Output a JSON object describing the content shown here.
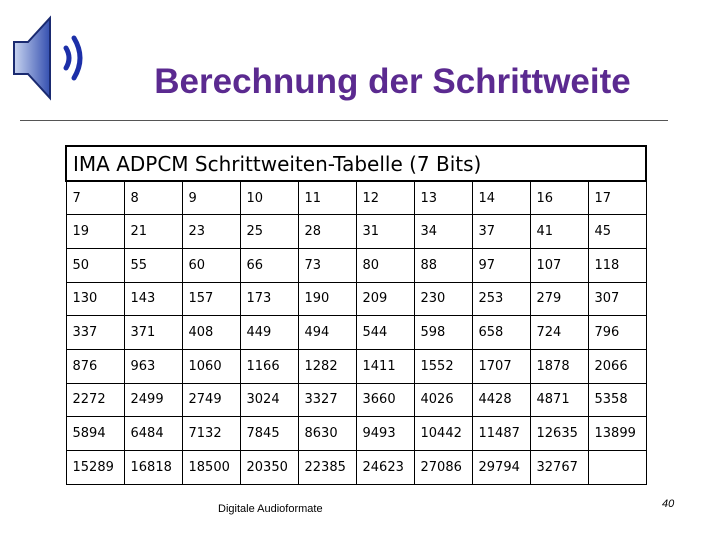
{
  "slide": {
    "title": "Berechnung der Schrittweite",
    "footer": "Digitale Audioformate",
    "page_number": "40"
  },
  "table": {
    "title": "IMA ADPCM Schrittweiten-Tabelle (7 Bits)",
    "rows": [
      [
        "7",
        "8",
        "9",
        "10",
        "11",
        "12",
        "13",
        "14",
        "16",
        "17"
      ],
      [
        "19",
        "21",
        "23",
        "25",
        "28",
        "31",
        "34",
        "37",
        "41",
        "45"
      ],
      [
        "50",
        "55",
        "60",
        "66",
        "73",
        "80",
        "88",
        "97",
        "107",
        "118"
      ],
      [
        "130",
        "143",
        "157",
        "173",
        "190",
        "209",
        "230",
        "253",
        "279",
        "307"
      ],
      [
        "337",
        "371",
        "408",
        "449",
        "494",
        "544",
        "598",
        "658",
        "724",
        "796"
      ],
      [
        "876",
        "963",
        "1060",
        "1166",
        "1282",
        "1411",
        "1552",
        "1707",
        "1878",
        "2066"
      ],
      [
        "2272",
        "2499",
        "2749",
        "3024",
        "3327",
        "3660",
        "4026",
        "4428",
        "4871",
        "5358"
      ],
      [
        "5894",
        "6484",
        "7132",
        "7845",
        "8630",
        "9493",
        "10442",
        "11487",
        "12635",
        "13899"
      ],
      [
        "15289",
        "16818",
        "18500",
        "20350",
        "22385",
        "24623",
        "27086",
        "29794",
        "32767"
      ]
    ]
  }
}
